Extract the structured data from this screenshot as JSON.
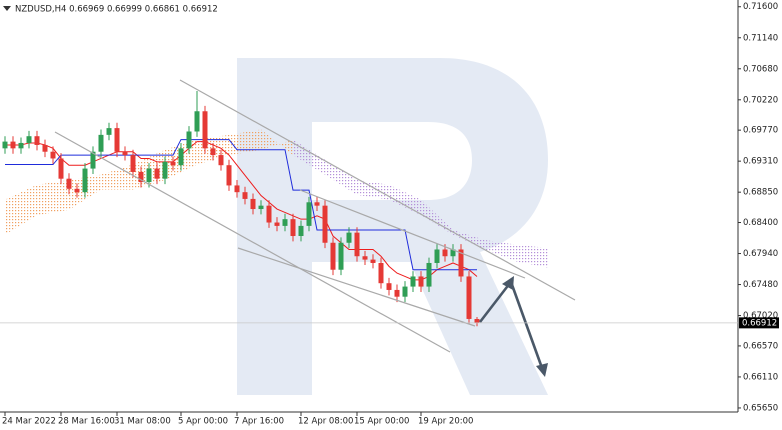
{
  "chart_data": {
    "type": "candlestick",
    "title": "NZDUSD,H4 0.66969 0.66999 0.66861 0.66912",
    "categories": [
      "24 Mar 2022",
      null,
      null,
      null,
      null,
      null,
      null,
      "28 Mar 16:00",
      null,
      null,
      null,
      null,
      null,
      null,
      "31 Mar 08:00",
      null,
      null,
      null,
      null,
      null,
      null,
      null,
      "5 Apr 00:00",
      null,
      null,
      null,
      null,
      null,
      null,
      "7 Apr 16:00",
      null,
      null,
      null,
      null,
      null,
      null,
      null,
      "12 Apr 08:00",
      null,
      null,
      null,
      null,
      null,
      null,
      "15 Apr 00:00",
      null,
      null,
      null,
      null,
      null,
      null,
      null,
      "19 Apr 20:00",
      null,
      null,
      null,
      null,
      null,
      null,
      null
    ],
    "open": [
      0.695,
      0.696,
      0.695,
      0.6958,
      0.6968,
      0.6955,
      0.6945,
      0.6935,
      0.6905,
      0.689,
      0.6885,
      0.692,
      0.6945,
      0.697,
      0.698,
      0.6945,
      0.694,
      0.6915,
      0.69,
      0.692,
      0.6905,
      0.693,
      0.6925,
      0.695,
      0.6975,
      0.7005,
      0.695,
      0.694,
      0.6925,
      0.6895,
      0.6885,
      0.6875,
      0.686,
      0.6865,
      0.684,
      0.6835,
      0.6845,
      0.682,
      0.6835,
      0.687,
      0.6865,
      0.681,
      0.677,
      0.681,
      0.6825,
      0.679,
      0.6785,
      0.678,
      0.675,
      0.674,
      0.673,
      0.6745,
      0.676,
      0.6745,
      0.678,
      0.68,
      0.679,
      0.68,
      0.676,
      0.66969
    ],
    "high": [
      0.6968,
      0.6968,
      0.6966,
      0.6976,
      0.6976,
      0.6963,
      0.6953,
      0.6943,
      0.6913,
      0.6898,
      0.6928,
      0.6953,
      0.6978,
      0.6988,
      0.6988,
      0.6953,
      0.6948,
      0.6923,
      0.6928,
      0.6928,
      0.6938,
      0.6938,
      0.6958,
      0.6983,
      0.7035,
      0.7013,
      0.6958,
      0.6948,
      0.6933,
      0.6903,
      0.6893,
      0.6883,
      0.6873,
      0.6873,
      0.6848,
      0.6853,
      0.6853,
      0.6843,
      0.6878,
      0.6878,
      0.6873,
      0.6818,
      0.6818,
      0.6833,
      0.6833,
      0.6798,
      0.6793,
      0.6788,
      0.6758,
      0.6748,
      0.6753,
      0.6768,
      0.6768,
      0.6788,
      0.6808,
      0.6808,
      0.6808,
      0.6808,
      0.6768,
      0.66999
    ],
    "low": [
      0.6942,
      0.6942,
      0.6942,
      0.695,
      0.6947,
      0.6937,
      0.6927,
      0.6897,
      0.6882,
      0.6877,
      0.6877,
      0.6912,
      0.6937,
      0.6962,
      0.6937,
      0.6932,
      0.6907,
      0.6892,
      0.6892,
      0.6897,
      0.6897,
      0.6917,
      0.6917,
      0.6942,
      0.6967,
      0.6942,
      0.6932,
      0.6917,
      0.6887,
      0.6877,
      0.6867,
      0.6852,
      0.6852,
      0.6832,
      0.6827,
      0.6827,
      0.6812,
      0.6812,
      0.6827,
      0.6857,
      0.6802,
      0.6762,
      0.6762,
      0.6802,
      0.6782,
      0.6777,
      0.6772,
      0.6742,
      0.6732,
      0.6722,
      0.6722,
      0.6737,
      0.6737,
      0.6737,
      0.6772,
      0.6782,
      0.6782,
      0.6752,
      0.6689,
      0.66861
    ],
    "close": [
      0.696,
      0.695,
      0.6958,
      0.6968,
      0.6955,
      0.6945,
      0.6935,
      0.6905,
      0.689,
      0.6885,
      0.692,
      0.6945,
      0.697,
      0.698,
      0.6945,
      0.694,
      0.6915,
      0.69,
      0.692,
      0.6905,
      0.693,
      0.6925,
      0.695,
      0.6975,
      0.7005,
      0.695,
      0.694,
      0.6925,
      0.6895,
      0.6885,
      0.6875,
      0.686,
      0.6865,
      0.684,
      0.6835,
      0.6845,
      0.682,
      0.6835,
      0.687,
      0.6865,
      0.681,
      0.677,
      0.681,
      0.6825,
      0.679,
      0.6785,
      0.678,
      0.675,
      0.674,
      0.673,
      0.6745,
      0.676,
      0.6745,
      0.678,
      0.68,
      0.679,
      0.68,
      0.676,
      0.6697,
      0.66912
    ],
    "up_color": "#2f9e55",
    "down_color": "#e53935",
    "lines": [
      {
        "color": "#ee1c1c",
        "values": [
          0.6955,
          0.6955,
          0.6955,
          0.6958,
          0.6958,
          0.6955,
          0.695,
          0.6935,
          0.6925,
          0.6925,
          0.6925,
          0.693,
          0.6935,
          0.694,
          0.6945,
          0.6945,
          0.6945,
          0.6935,
          0.6935,
          0.693,
          0.693,
          0.693,
          0.694,
          0.695,
          0.696,
          0.696,
          0.6955,
          0.695,
          0.694,
          0.6925,
          0.691,
          0.6895,
          0.688,
          0.687,
          0.686,
          0.6855,
          0.685,
          0.6845,
          0.6845,
          0.685,
          0.6845,
          0.682,
          0.681,
          0.68,
          0.68,
          0.68,
          0.68,
          0.679,
          0.6775,
          0.6765,
          0.676,
          0.6755,
          0.6755,
          0.676,
          0.677,
          0.6775,
          0.678,
          0.6775,
          0.677,
          0.676
        ]
      },
      {
        "color": "#1f2cdb",
        "values": [
          0.6926,
          0.6926,
          0.6926,
          0.6926,
          0.6926,
          0.6926,
          0.6926,
          0.694,
          0.694,
          0.694,
          0.694,
          0.694,
          0.694,
          0.694,
          0.694,
          0.694,
          0.694,
          0.694,
          0.694,
          0.694,
          0.694,
          0.694,
          0.6963,
          0.6963,
          0.6963,
          0.6963,
          0.6963,
          0.6963,
          0.6963,
          0.6948,
          0.6948,
          0.6948,
          0.6948,
          0.6948,
          0.6948,
          0.6948,
          0.6888,
          0.6888,
          0.6888,
          0.6829,
          0.6829,
          0.6829,
          0.6829,
          0.6829,
          0.6829,
          0.6829,
          0.6829,
          0.6829,
          0.6829,
          0.6829,
          0.6829,
          0.677,
          0.677,
          0.677,
          0.677,
          0.677,
          0.677,
          0.677,
          0.677,
          0.677
        ]
      }
    ],
    "cloud": {
      "x": [
        0,
        4,
        8,
        12,
        16,
        20,
        24,
        28,
        32,
        36,
        40,
        44,
        48,
        52,
        56,
        60,
        64,
        68
      ],
      "span_a": [
        0.6874,
        0.6896,
        0.6903,
        0.6911,
        0.6926,
        0.6948,
        0.6963,
        0.697,
        0.6978,
        0.694,
        0.6911,
        0.6881,
        0.6874,
        0.6851,
        0.6822,
        0.68,
        0.6782,
        0.6773
      ],
      "span_b": [
        0.6822,
        0.6851,
        0.6859,
        0.6889,
        0.6889,
        0.6903,
        0.6926,
        0.694,
        0.6948,
        0.6963,
        0.6933,
        0.6903,
        0.6896,
        0.6874,
        0.6829,
        0.6814,
        0.6807,
        0.6802
      ],
      "up_color": "#f0a060",
      "down_color": "#b48fd8"
    },
    "current_price": {
      "value": 0.66912,
      "label": "0.66912"
    },
    "ylim": [
      0.6559,
      0.717
    ],
    "yticks": [
      {
        "value": 0.716,
        "label": "0.71600"
      },
      {
        "value": 0.7114,
        "label": "0.71140"
      },
      {
        "value": 0.7068,
        "label": "0.70680"
      },
      {
        "value": 0.7022,
        "label": "0.70220"
      },
      {
        "value": 0.6977,
        "label": "0.69770"
      },
      {
        "value": 0.6931,
        "label": "0.69310"
      },
      {
        "value": 0.6885,
        "label": "0.68850"
      },
      {
        "value": 0.684,
        "label": "0.68400"
      },
      {
        "value": 0.6794,
        "label": "0.67940"
      },
      {
        "value": 0.6748,
        "label": "0.67480"
      },
      {
        "value": 0.6702,
        "label": "0.67020"
      },
      {
        "value": 0.6657,
        "label": "0.66570"
      },
      {
        "value": 0.6611,
        "label": "0.66110"
      },
      {
        "value": 0.6565,
        "label": "0.65650"
      }
    ]
  }
}
